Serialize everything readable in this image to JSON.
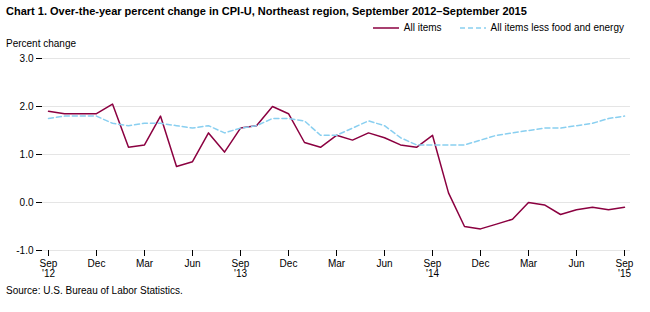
{
  "chart_data": {
    "type": "line",
    "title": "Chart 1. Over-the-year percent change in CPI-U, Northeast region, September 2012–September 2015",
    "ylabel": "Percent change",
    "source": "Source: U.S. Bureau of Labor Statistics.",
    "categories": [
      "Sep\n'12",
      null,
      null,
      "Dec",
      null,
      null,
      "Mar",
      null,
      null,
      "Jun",
      null,
      null,
      "Sep\n'13",
      null,
      null,
      "Dec",
      null,
      null,
      "Mar",
      null,
      null,
      "Jun",
      null,
      null,
      "Sep\n'14",
      null,
      null,
      "Dec",
      null,
      null,
      "Mar",
      null,
      null,
      "Jun",
      null,
      null,
      "Sep\n'15"
    ],
    "series": [
      {
        "name": "All items",
        "color": "#8B0040",
        "line_style": "solid",
        "values": [
          1.9,
          1.85,
          1.85,
          1.85,
          2.05,
          1.15,
          1.2,
          1.8,
          0.75,
          0.85,
          1.45,
          1.05,
          1.55,
          1.6,
          2.0,
          1.85,
          1.25,
          1.15,
          1.4,
          1.3,
          1.45,
          1.35,
          1.2,
          1.15,
          1.4,
          0.2,
          -0.5,
          -0.55,
          -0.45,
          -0.35,
          0.0,
          -0.05,
          -0.25,
          -0.15,
          -0.1,
          -0.15,
          -0.1
        ]
      },
      {
        "name": "All items less food and energy",
        "color": "#89CFF0",
        "line_style": "dashed",
        "values": [
          1.75,
          1.8,
          1.8,
          1.8,
          1.65,
          1.6,
          1.65,
          1.65,
          1.6,
          1.55,
          1.6,
          1.45,
          1.55,
          1.6,
          1.75,
          1.75,
          1.7,
          1.4,
          1.4,
          1.55,
          1.7,
          1.6,
          1.35,
          1.2,
          1.2,
          1.2,
          1.2,
          1.3,
          1.4,
          1.45,
          1.5,
          1.55,
          1.55,
          1.6,
          1.65,
          1.75,
          1.8
        ]
      }
    ],
    "ylim": [
      -1.0,
      3.0
    ],
    "yticks": [
      {
        "value": -1.0,
        "label": "-1.0"
      },
      {
        "value": 0.0,
        "label": "0.0"
      },
      {
        "value": 1.0,
        "label": "1.0"
      },
      {
        "value": 2.0,
        "label": "2.0"
      },
      {
        "value": 3.0,
        "label": "3.0"
      }
    ],
    "grid": true,
    "legend": "top"
  }
}
